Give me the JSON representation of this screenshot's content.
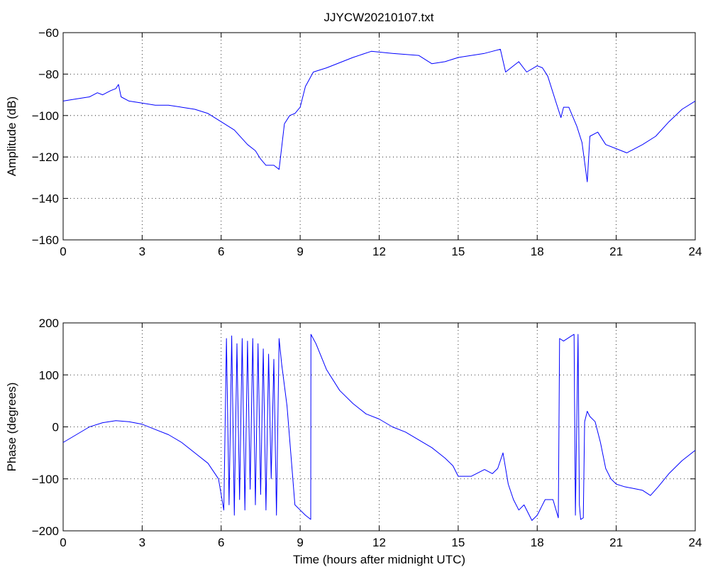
{
  "figure": {
    "title": "JJYCW20210107.txt"
  },
  "chart_data": [
    {
      "type": "line",
      "title": "JJYCW20210107.txt",
      "xlabel": "",
      "ylabel": "Amplitude (dB)",
      "xlim": [
        0,
        24
      ],
      "ylim": [
        -160,
        -60
      ],
      "xticks": [
        0,
        3,
        6,
        9,
        12,
        15,
        18,
        21,
        24
      ],
      "yticks": [
        -160,
        -140,
        -120,
        -100,
        -80,
        -60
      ],
      "xtick_labels": [
        "0",
        "3",
        "6",
        "9",
        "12",
        "15",
        "18",
        "21",
        "24"
      ],
      "ytick_labels": [
        "−160",
        "−140",
        "−120",
        "−100",
        "−80",
        "−60"
      ],
      "grid": true,
      "series": [
        {
          "color": "#0000ff",
          "x": [
            0,
            0.5,
            1.0,
            1.3,
            1.5,
            1.8,
            2.0,
            2.1,
            2.2,
            2.5,
            3.0,
            3.5,
            4.0,
            4.5,
            5.0,
            5.5,
            6.0,
            6.5,
            7.0,
            7.3,
            7.5,
            7.7,
            8.0,
            8.2,
            8.4,
            8.6,
            8.8,
            9.0,
            9.2,
            9.5,
            10.0,
            11.0,
            11.7,
            12.5,
            13.5,
            14.0,
            14.5,
            15.0,
            16.0,
            16.3,
            16.6,
            16.8,
            17.0,
            17.3,
            17.6,
            18.0,
            18.2,
            18.4,
            18.7,
            18.9,
            19.0,
            19.2,
            19.5,
            19.7,
            19.9,
            20.0,
            20.3,
            20.6,
            21.0,
            21.4,
            22.0,
            22.5,
            23.0,
            23.5,
            24.0
          ],
          "y": [
            -93,
            -92,
            -91,
            -89,
            -90,
            -88,
            -87,
            -85,
            -91,
            -93,
            -94,
            -95,
            -95,
            -96,
            -97,
            -99,
            -103,
            -107,
            -114,
            -117,
            -121,
            -124,
            -124,
            -126,
            -104,
            -100,
            -99,
            -96,
            -86,
            -79,
            -77,
            -72,
            -69,
            -70,
            -71,
            -75,
            -74,
            -72,
            -70,
            -69,
            -68,
            -79,
            -77,
            -74,
            -79,
            -76,
            -77,
            -81,
            -93,
            -101,
            -96,
            -96,
            -105,
            -113,
            -132,
            -110,
            -108,
            -114,
            -116,
            -118,
            -114,
            -110,
            -103,
            -97,
            -93
          ]
        }
      ]
    },
    {
      "type": "line",
      "title": "",
      "xlabel": "Time (hours after midnight UTC)",
      "ylabel": "Phase (degrees)",
      "xlim": [
        0,
        24
      ],
      "ylim": [
        -200,
        200
      ],
      "xticks": [
        0,
        3,
        6,
        9,
        12,
        15,
        18,
        21,
        24
      ],
      "yticks": [
        -200,
        -100,
        0,
        100,
        200
      ],
      "xtick_labels": [
        "0",
        "3",
        "6",
        "9",
        "12",
        "15",
        "18",
        "21",
        "24"
      ],
      "ytick_labels": [
        "−200",
        "−100",
        "0",
        "100",
        "200"
      ],
      "grid": true,
      "series": [
        {
          "color": "#0000ff",
          "x": [
            0,
            0.5,
            1.0,
            1.5,
            2.0,
            2.5,
            3.0,
            3.5,
            4.0,
            4.5,
            5.0,
            5.5,
            5.9,
            6.1,
            6.2,
            6.3,
            6.4,
            6.5,
            6.6,
            6.7,
            6.8,
            6.9,
            7.0,
            7.1,
            7.2,
            7.3,
            7.4,
            7.5,
            7.6,
            7.7,
            7.8,
            7.9,
            8.0,
            8.1,
            8.2,
            8.3,
            8.5,
            8.8,
            9.0,
            9.2,
            9.4,
            9.41,
            9.6,
            10.0,
            10.5,
            11.0,
            11.5,
            12.0,
            12.5,
            13.0,
            13.5,
            14.0,
            14.5,
            14.8,
            15.0,
            15.5,
            16.0,
            16.3,
            16.5,
            16.7,
            16.9,
            17.1,
            17.3,
            17.5,
            17.8,
            18.0,
            18.3,
            18.6,
            18.8,
            18.85,
            19.0,
            19.3,
            19.4,
            19.45,
            19.55,
            19.6,
            19.65,
            19.75,
            19.8,
            19.9,
            20.0,
            20.2,
            20.4,
            20.6,
            20.8,
            21.0,
            21.3,
            21.6,
            22.0,
            22.3,
            22.6,
            23.0,
            23.5,
            24.0
          ],
          "y": [
            -30,
            -15,
            0,
            8,
            12,
            10,
            5,
            -5,
            -15,
            -30,
            -50,
            -70,
            -100,
            -160,
            170,
            -150,
            175,
            -170,
            160,
            -140,
            170,
            -160,
            165,
            -120,
            170,
            -150,
            160,
            -130,
            150,
            -160,
            140,
            -100,
            130,
            -170,
            170,
            120,
            40,
            -150,
            -160,
            -170,
            -178,
            178,
            160,
            110,
            70,
            45,
            25,
            15,
            0,
            -10,
            -25,
            -40,
            -60,
            -75,
            -95,
            -95,
            -82,
            -90,
            -80,
            -50,
            -110,
            -140,
            -160,
            -150,
            -180,
            -170,
            -140,
            -140,
            -175,
            170,
            165,
            175,
            178,
            -170,
            178,
            -150,
            -178,
            -175,
            10,
            30,
            20,
            10,
            -30,
            -80,
            -100,
            -110,
            -115,
            -118,
            -122,
            -132,
            -115,
            -90,
            -65,
            -45
          ]
        }
      ]
    }
  ]
}
